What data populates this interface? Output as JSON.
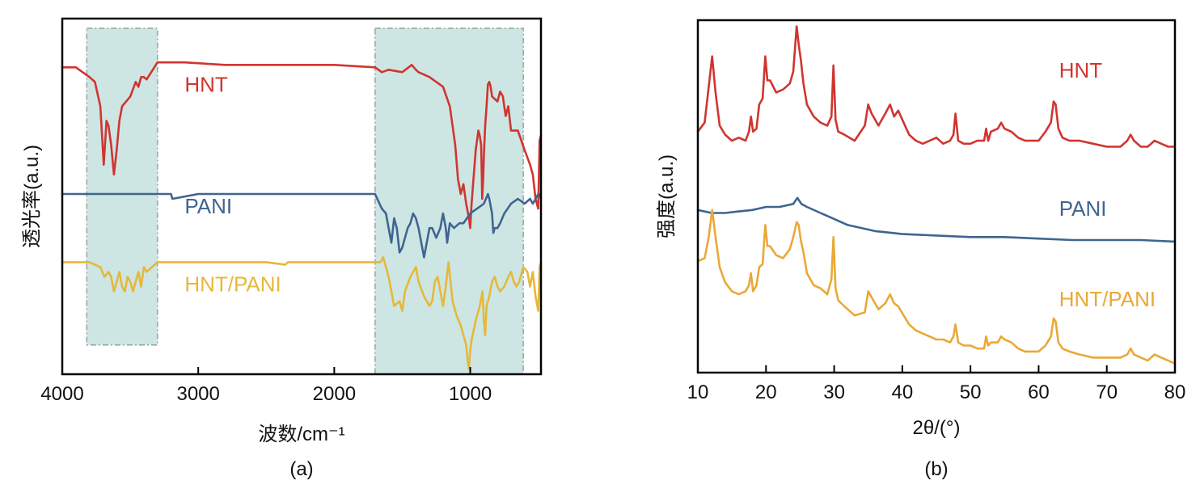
{
  "chart_data": [
    {
      "type": "line",
      "panel_label": "(a)",
      "xlabel": "波数/cm⁻¹",
      "ylabel": "透光率(a.u.)",
      "xlim": [
        4000,
        480
      ],
      "x_reversed": true,
      "ylim": [
        -6.3,
        1
      ],
      "y_ticks_shown": false,
      "x_ticks": [
        4000,
        3000,
        2000,
        1000
      ],
      "x_tick_labels": [
        "4000",
        "3000",
        "2000",
        "1000"
      ],
      "shaded_regions": [
        {
          "from": 3820,
          "to": 3300,
          "y_top": 0.8,
          "y_bottom": -5.7,
          "color": "#cde6e4"
        },
        {
          "from": 1700,
          "to": 610,
          "y_top": 0.8,
          "y_bottom": -6.3,
          "color": "#cde6e4"
        }
      ],
      "series": [
        {
          "name": "HNT",
          "color": "#d03530",
          "label_at": {
            "x": 3100,
            "y": -0.5
          },
          "x": [
            4000,
            3900,
            3800,
            3760,
            3720,
            3695,
            3675,
            3660,
            3640,
            3620,
            3600,
            3580,
            3560,
            3500,
            3460,
            3440,
            3420,
            3400,
            3380,
            3300,
            3100,
            2800,
            2500,
            2000,
            1700,
            1650,
            1600,
            1500,
            1430,
            1400,
            1380,
            1300,
            1200,
            1150,
            1110,
            1090,
            1070,
            1050,
            1040,
            1030,
            1010,
            1000,
            990,
            960,
            940,
            930,
            920,
            915,
            912,
            905,
            900,
            890,
            880,
            870,
            860,
            850,
            840,
            800,
            780,
            760,
            740,
            720,
            700,
            680,
            650,
            600,
            560,
            540,
            520,
            500,
            490,
            480
          ],
          "values": [
            0,
            0,
            -0.2,
            -0.3,
            -0.8,
            -2.0,
            -1.1,
            -1.2,
            -1.6,
            -2.2,
            -1.7,
            -1.1,
            -0.8,
            -0.6,
            -0.3,
            -0.4,
            -0.2,
            -0.2,
            -0.25,
            0.1,
            0.1,
            0.05,
            0.05,
            0.05,
            0.0,
            -0.1,
            -0.05,
            -0.1,
            0.05,
            -0.05,
            -0.1,
            -0.2,
            -0.4,
            -0.8,
            -1.6,
            -2.3,
            -2.6,
            -2.4,
            -2.6,
            -2.8,
            -3.1,
            -3.3,
            -2.8,
            -1.7,
            -1.3,
            -1.4,
            -1.6,
            -2.2,
            -2.7,
            -2.3,
            -1.8,
            -1.2,
            -0.8,
            -0.35,
            -0.3,
            -0.4,
            -0.6,
            -0.7,
            -0.5,
            -0.6,
            -1.0,
            -0.8,
            -1.3,
            -1.3,
            -1.3,
            -1.7,
            -2.0,
            -2.2,
            -2.7,
            -2.9,
            -1.5,
            -1.4
          ]
        },
        {
          "name": "PANI",
          "color": "#3f6590",
          "label_at": {
            "x": 3100,
            "y": -3.0
          },
          "x": [
            4000,
            3600,
            3200,
            3190,
            3000,
            2000,
            1700,
            1650,
            1620,
            1600,
            1580,
            1560,
            1540,
            1520,
            1500,
            1480,
            1460,
            1440,
            1420,
            1400,
            1380,
            1340,
            1320,
            1300,
            1280,
            1250,
            1220,
            1200,
            1180,
            1170,
            1160,
            1150,
            1120,
            1080,
            1050,
            1000,
            950,
            900,
            870,
            860,
            840,
            830,
            820,
            800,
            780,
            750,
            700,
            650,
            600,
            560,
            540,
            520,
            500,
            490,
            480
          ],
          "values": [
            -2.6,
            -2.6,
            -2.6,
            -2.7,
            -2.6,
            -2.6,
            -2.6,
            -2.9,
            -3.0,
            -3.3,
            -3.6,
            -3.1,
            -3.3,
            -3.8,
            -3.7,
            -3.5,
            -3.3,
            -3.2,
            -3.0,
            -3.1,
            -3.3,
            -3.9,
            -3.6,
            -3.3,
            -3.3,
            -3.5,
            -3.3,
            -3.0,
            -3.3,
            -3.6,
            -3.4,
            -3.2,
            -3.3,
            -3.2,
            -3.2,
            -3.0,
            -2.9,
            -2.8,
            -2.6,
            -2.7,
            -3.0,
            -3.4,
            -3.3,
            -3.3,
            -3.2,
            -3.0,
            -2.8,
            -2.7,
            -2.8,
            -2.7,
            -2.8,
            -2.7,
            -2.6,
            -2.6,
            -2.7
          ]
        },
        {
          "name": "HNT/PANI",
          "color": "#e6b83a",
          "label_at": {
            "x": 3100,
            "y": -4.6
          },
          "x": [
            4000,
            3900,
            3800,
            3720,
            3690,
            3660,
            3640,
            3620,
            3600,
            3580,
            3560,
            3540,
            3520,
            3500,
            3480,
            3460,
            3440,
            3420,
            3400,
            3380,
            3300,
            3000,
            2500,
            2360,
            2340,
            2000,
            1700,
            1660,
            1640,
            1600,
            1580,
            1560,
            1520,
            1500,
            1480,
            1440,
            1400,
            1380,
            1340,
            1300,
            1280,
            1260,
            1240,
            1200,
            1180,
            1160,
            1130,
            1100,
            1070,
            1050,
            1030,
            1020,
            1010,
            1000,
            990,
            960,
            930,
            910,
            900,
            890,
            880,
            860,
            840,
            820,
            800,
            780,
            750,
            720,
            700,
            680,
            660,
            640,
            610,
            580,
            560,
            540,
            520,
            500,
            490,
            480
          ],
          "values": [
            -4.0,
            -4.0,
            -4.0,
            -4.1,
            -4.3,
            -4.2,
            -4.3,
            -4.6,
            -4.4,
            -4.2,
            -4.5,
            -4.6,
            -4.3,
            -4.4,
            -4.6,
            -4.4,
            -4.2,
            -4.5,
            -4.1,
            -4.2,
            -4.0,
            -4.0,
            -4.0,
            -4.05,
            -4.0,
            -4.0,
            -4.0,
            -4.0,
            -3.9,
            -4.3,
            -4.6,
            -4.9,
            -4.8,
            -5.0,
            -4.6,
            -4.3,
            -4.1,
            -4.4,
            -4.7,
            -4.9,
            -4.8,
            -4.4,
            -4.3,
            -4.9,
            -4.5,
            -4.0,
            -4.8,
            -5.1,
            -5.3,
            -5.5,
            -5.7,
            -6.0,
            -6.2,
            -5.8,
            -5.6,
            -5.2,
            -4.9,
            -4.6,
            -5.2,
            -5.5,
            -4.9,
            -4.7,
            -4.4,
            -4.3,
            -4.5,
            -4.6,
            -4.5,
            -4.3,
            -4.2,
            -4.4,
            -4.5,
            -4.4,
            -4.1,
            -4.2,
            -4.5,
            -4.2,
            -4.7,
            -5.0,
            -4.1,
            -4.0
          ]
        }
      ]
    },
    {
      "type": "line",
      "panel_label": "(b)",
      "xlabel": "2θ/(°)",
      "ylabel": "强度(a.u.)",
      "xlim": [
        10,
        80
      ],
      "ylim": [
        -10.5,
        1.2
      ],
      "y_ticks_shown": false,
      "x_ticks": [
        10,
        20,
        30,
        40,
        50,
        60,
        70,
        80
      ],
      "x_tick_labels": [
        "10",
        "20",
        "30",
        "40",
        "50",
        "60",
        "70",
        "80"
      ],
      "series": [
        {
          "name": "HNT",
          "color": "#d03530",
          "label_at": {
            "x": 63,
            "y": -0.7
          },
          "x": [
            10,
            11,
            11.6,
            12.1,
            12.6,
            13.2,
            14,
            15,
            16,
            17,
            17.5,
            17.8,
            18.1,
            18.6,
            19,
            19.5,
            19.9,
            20.2,
            20.6,
            21.5,
            22.5,
            23.5,
            24,
            24.5,
            24.8,
            25.1,
            25.5,
            26,
            27,
            28,
            29,
            29.6,
            29.9,
            30.2,
            30.6,
            31.5,
            33,
            34.5,
            35,
            35.5,
            36.5,
            37.5,
            38.2,
            38.8,
            39.4,
            40.2,
            41,
            42,
            43,
            44,
            45,
            46,
            47,
            47.5,
            47.8,
            48.2,
            49,
            50,
            51,
            52,
            52.3,
            52.6,
            53,
            54,
            54.5,
            55,
            56,
            57,
            58,
            59,
            60,
            61,
            61.8,
            62.2,
            62.5,
            62.9,
            63.5,
            64.5,
            66,
            68,
            70,
            72,
            73,
            73.5,
            74,
            75,
            76,
            77,
            78,
            79,
            80
          ],
          "values": [
            -2.5,
            -2.2,
            -1.0,
            0.0,
            -1.2,
            -2.3,
            -2.6,
            -2.8,
            -2.7,
            -2.8,
            -2.5,
            -2.0,
            -2.5,
            -2.4,
            -1.6,
            -1.4,
            0.0,
            -0.8,
            -0.8,
            -1.2,
            -1.1,
            -0.9,
            -0.5,
            1.0,
            0.4,
            -0.1,
            -0.9,
            -1.6,
            -2.0,
            -2.2,
            -2.3,
            -2.0,
            -0.3,
            -2.1,
            -2.5,
            -2.6,
            -2.8,
            -2.3,
            -1.6,
            -1.9,
            -2.3,
            -1.9,
            -1.6,
            -2.0,
            -1.8,
            -2.2,
            -2.6,
            -2.8,
            -2.9,
            -2.8,
            -2.7,
            -2.9,
            -2.8,
            -2.6,
            -1.9,
            -2.8,
            -2.9,
            -2.9,
            -2.8,
            -2.8,
            -2.4,
            -2.8,
            -2.5,
            -2.4,
            -2.2,
            -2.4,
            -2.5,
            -2.7,
            -2.8,
            -2.8,
            -2.8,
            -2.5,
            -2.2,
            -1.5,
            -1.6,
            -2.4,
            -2.7,
            -2.8,
            -2.8,
            -2.9,
            -3.0,
            -3.0,
            -2.8,
            -2.6,
            -2.8,
            -3.0,
            -3.0,
            -2.8,
            -2.9,
            -3.0,
            -3.0
          ]
        },
        {
          "name": "PANI",
          "color": "#3f6590",
          "label_at": {
            "x": 63,
            "y": -5.3
          },
          "x": [
            10,
            12,
            14,
            16,
            18,
            20,
            22,
            24,
            24.6,
            25.2,
            26,
            28,
            30,
            32,
            34,
            36,
            38,
            40,
            45,
            50,
            55,
            60,
            65,
            70,
            75,
            80
          ],
          "values": [
            -5.1,
            -5.2,
            -5.2,
            -5.15,
            -5.1,
            -5.0,
            -5.0,
            -4.9,
            -4.7,
            -4.9,
            -5.0,
            -5.2,
            -5.4,
            -5.6,
            -5.7,
            -5.8,
            -5.85,
            -5.9,
            -5.95,
            -6.0,
            -6.0,
            -6.05,
            -6.1,
            -6.1,
            -6.1,
            -6.15
          ]
        },
        {
          "name": "HNT/PANI",
          "color": "#eaa836",
          "label_at": {
            "x": 63,
            "y": -8.3
          },
          "x": [
            10,
            11,
            11.6,
            12.1,
            12.6,
            13.2,
            14,
            15,
            16,
            17,
            17.5,
            17.8,
            18.1,
            18.6,
            19,
            19.5,
            19.9,
            20.2,
            20.6,
            21.5,
            22.5,
            23.5,
            24,
            24.5,
            24.8,
            25.1,
            25.5,
            26,
            27,
            28,
            29,
            29.6,
            29.9,
            30.2,
            30.6,
            31.5,
            33,
            34.5,
            35,
            35.5,
            36.5,
            37.5,
            38.2,
            38.8,
            39.4,
            40.2,
            41,
            42,
            43,
            44,
            45,
            46,
            47,
            47.5,
            47.8,
            48.2,
            49,
            50,
            51,
            52,
            52.3,
            52.6,
            53,
            54,
            54.5,
            55,
            56,
            57,
            58,
            59,
            60,
            61,
            61.8,
            62.2,
            62.5,
            62.9,
            63.5,
            64.5,
            66,
            68,
            70,
            72,
            73,
            73.5,
            74,
            75,
            76,
            77,
            78,
            79,
            80
          ],
          "values": [
            -6.8,
            -6.7,
            -6.0,
            -5.1,
            -6.0,
            -7.0,
            -7.5,
            -7.8,
            -7.9,
            -7.8,
            -7.6,
            -7.2,
            -7.8,
            -7.6,
            -7.0,
            -6.9,
            -5.6,
            -6.3,
            -6.3,
            -6.6,
            -6.7,
            -6.4,
            -6.0,
            -5.5,
            -5.6,
            -6.1,
            -6.5,
            -7.2,
            -7.6,
            -7.7,
            -7.9,
            -7.4,
            -6.0,
            -7.7,
            -8.1,
            -8.3,
            -8.6,
            -8.5,
            -7.8,
            -8.0,
            -8.4,
            -8.2,
            -7.9,
            -8.2,
            -8.3,
            -8.6,
            -8.9,
            -9.1,
            -9.2,
            -9.3,
            -9.4,
            -9.4,
            -9.5,
            -9.3,
            -8.9,
            -9.5,
            -9.6,
            -9.6,
            -9.7,
            -9.7,
            -9.3,
            -9.6,
            -9.5,
            -9.5,
            -9.3,
            -9.4,
            -9.5,
            -9.7,
            -9.8,
            -9.8,
            -9.8,
            -9.6,
            -9.3,
            -8.7,
            -8.8,
            -9.5,
            -9.7,
            -9.8,
            -9.9,
            -10.0,
            -10.0,
            -10.0,
            -9.9,
            -9.7,
            -9.9,
            -10.0,
            -10.1,
            -9.9,
            -10.0,
            -10.1,
            -10.2
          ]
        }
      ]
    }
  ]
}
